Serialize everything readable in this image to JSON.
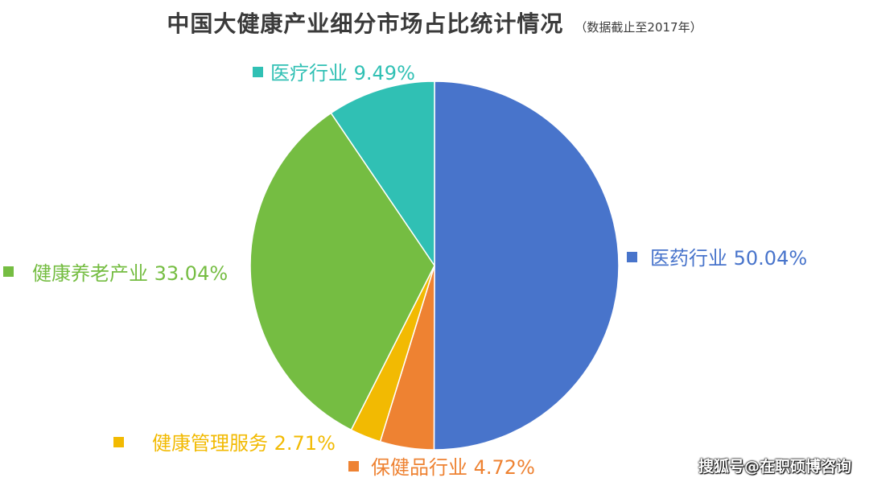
{
  "chart_data": {
    "type": "pie",
    "title": "中国大健康产业细分市场占比统计情况",
    "subtitle": "（数据截止至2017年）",
    "slices": [
      {
        "label": "医药行业",
        "value": 50.04,
        "display": "50.04%",
        "color": "#4874CB",
        "label_color": "#4874CB"
      },
      {
        "label": "保健品行业",
        "value": 4.72,
        "display": "4.72%",
        "color": "#EE8232",
        "label_color": "#EE8232"
      },
      {
        "label": "健康管理服务",
        "value": 2.71,
        "display": "2.71%",
        "color": "#F2BA02",
        "label_color": "#F2BA02"
      },
      {
        "label": "健康养老产业",
        "value": 33.04,
        "display": "33.04%",
        "color": "#75BD42",
        "label_color": "#75BD42"
      },
      {
        "label": "医疗行业",
        "value": 9.49,
        "display": "9.49%",
        "color": "#30C0B4",
        "label_color": "#30C0B4"
      }
    ]
  },
  "watermark": "搜狐号@在职硕博咨询"
}
